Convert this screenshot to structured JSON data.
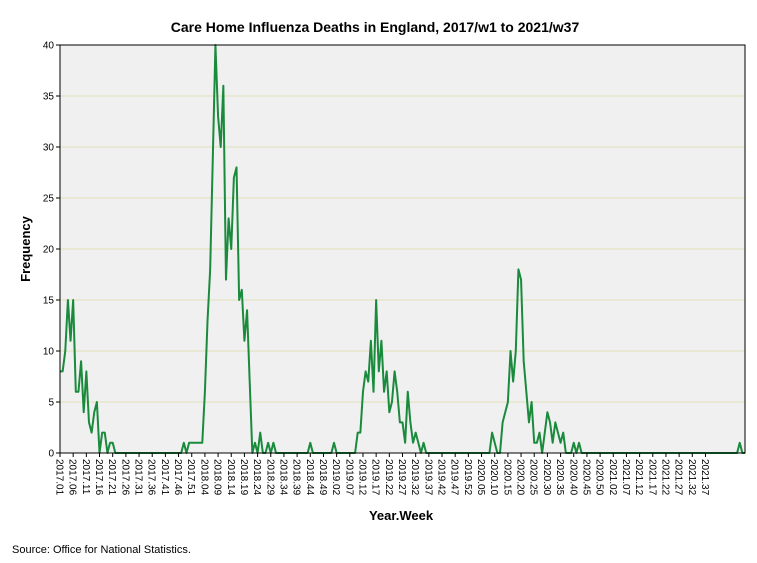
{
  "chart_data": {
    "type": "line",
    "title": "Care Home Influenza Deaths in England, 2017/w1 to 2021/w37",
    "xlabel": "Year.Week",
    "ylabel": "Frequency",
    "ylim": [
      0,
      40
    ],
    "yticks": [
      0,
      5,
      10,
      15,
      20,
      25,
      30,
      35,
      40
    ],
    "grid": "horizontal",
    "source": "Source: Office for National Statistics.",
    "colors": {
      "line": "#1a8a3c",
      "plot_bg": "#f0f0f0",
      "grid": "#e0e0b8"
    },
    "xtick_labels": [
      "2017.01",
      "2017.06",
      "2017.11",
      "2017.16",
      "2017.21",
      "2017.26",
      "2017.31",
      "2017.36",
      "2017.41",
      "2017.46",
      "2017.51",
      "2018.04",
      "2018.09",
      "2018.14",
      "2018.19",
      "2018.24",
      "2018.29",
      "2018.34",
      "2018.39",
      "2018.44",
      "2018.49",
      "2019.02",
      "2019.07",
      "2019.12",
      "2019.17",
      "2019.22",
      "2019.27",
      "2019.32",
      "2019.37",
      "2019.42",
      "2019.47",
      "2019.52",
      "2020.05",
      "2020.10",
      "2020.15",
      "2020.20",
      "2020.25",
      "2020.30",
      "2020.35",
      "2020.40",
      "2020.45",
      "2020.50",
      "2021.02",
      "2021.07",
      "2021.12",
      "2021.17",
      "2021.22",
      "2021.27",
      "2021.32",
      "2021.37"
    ],
    "series": [
      {
        "values": [
          8,
          8,
          10,
          15,
          11,
          15,
          6,
          6,
          9,
          4,
          8,
          3,
          2,
          4,
          5,
          0,
          2,
          2,
          0,
          1,
          1,
          0,
          0,
          0,
          0,
          0,
          0,
          0,
          0,
          0,
          0,
          0,
          0,
          0,
          0,
          0,
          0,
          0,
          0,
          0,
          0,
          0,
          0,
          0,
          0,
          0,
          0,
          1,
          0,
          1,
          1,
          1,
          1,
          1,
          1,
          6,
          13,
          18,
          29,
          40,
          33,
          30,
          36,
          17,
          23,
          20,
          27,
          28,
          15,
          16,
          11,
          14,
          7,
          0,
          1,
          0,
          2,
          0,
          0,
          1,
          0,
          1,
          0,
          0,
          0,
          0,
          0,
          0,
          0,
          0,
          0,
          0,
          0,
          0,
          0,
          1,
          0,
          0,
          0,
          0,
          0,
          0,
          0,
          0,
          1,
          0,
          0,
          0,
          0,
          0,
          0,
          0,
          0,
          2,
          2,
          6,
          8,
          7,
          11,
          6,
          15,
          8,
          11,
          6,
          8,
          4,
          5,
          8,
          6,
          3,
          3,
          1,
          6,
          3,
          1,
          2,
          1,
          0,
          1,
          0,
          0,
          0,
          0,
          0,
          0,
          0,
          0,
          0,
          0,
          0,
          0,
          0,
          0,
          0,
          0,
          0,
          0,
          0,
          0,
          0,
          0,
          0,
          0,
          0,
          2,
          1,
          0,
          0,
          3,
          4,
          5,
          10,
          7,
          10,
          18,
          17,
          9,
          6,
          3,
          5,
          1,
          1,
          2,
          0,
          2,
          4,
          3,
          1,
          3,
          2,
          1,
          2,
          0,
          0,
          0,
          1,
          0,
          1,
          0,
          0,
          0,
          0,
          0,
          0,
          0,
          0,
          0,
          0,
          0,
          0,
          0,
          0,
          0,
          0,
          0,
          0,
          0,
          0,
          0,
          0,
          0,
          0,
          0,
          0,
          0,
          0,
          0,
          0,
          0,
          0,
          0,
          0,
          0,
          0,
          0,
          0,
          0,
          0,
          0,
          0,
          0,
          0,
          0,
          0,
          0,
          0,
          0,
          0,
          0,
          0,
          0,
          0,
          0,
          0,
          0,
          0,
          0,
          0,
          1,
          0,
          0
        ]
      }
    ]
  }
}
